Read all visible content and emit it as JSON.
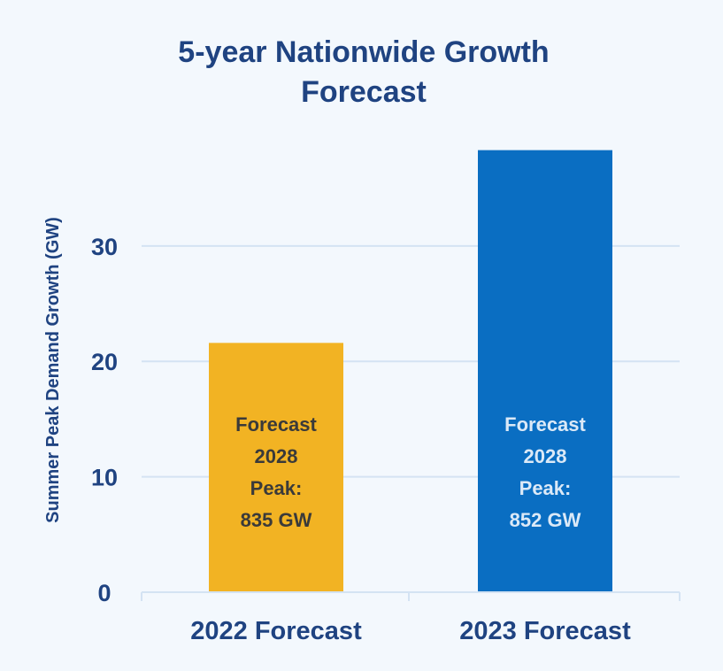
{
  "chart_data": {
    "type": "bar",
    "title_lines": [
      "5-year Nationwide Growth",
      "Forecast"
    ],
    "xlabel": "",
    "ylabel": "Summer Peak Demand Growth  (GW)",
    "ylim": [
      0,
      38.5
    ],
    "yticks": [
      0,
      10,
      20,
      30
    ],
    "grid": true,
    "legend": "none",
    "categories": [
      "2022 Forecast",
      "2023 Forecast"
    ],
    "values": [
      21.6,
      38.3
    ],
    "bar_colors": [
      "#f2b323",
      "#0a6ec2"
    ],
    "bar_annotations": [
      [
        "Forecast",
        "2028",
        "Peak:",
        "835 GW"
      ],
      [
        "Forecast",
        "2028",
        "Peak:",
        "852 GW"
      ]
    ],
    "bar_annotation_colors": [
      "#3a3a3a",
      "#dbe9f7"
    ],
    "colors": {
      "background": "#f3f8fd",
      "title": "#1f4381",
      "axis_text": "#1f4381",
      "grid": "#d4e3f3"
    }
  }
}
